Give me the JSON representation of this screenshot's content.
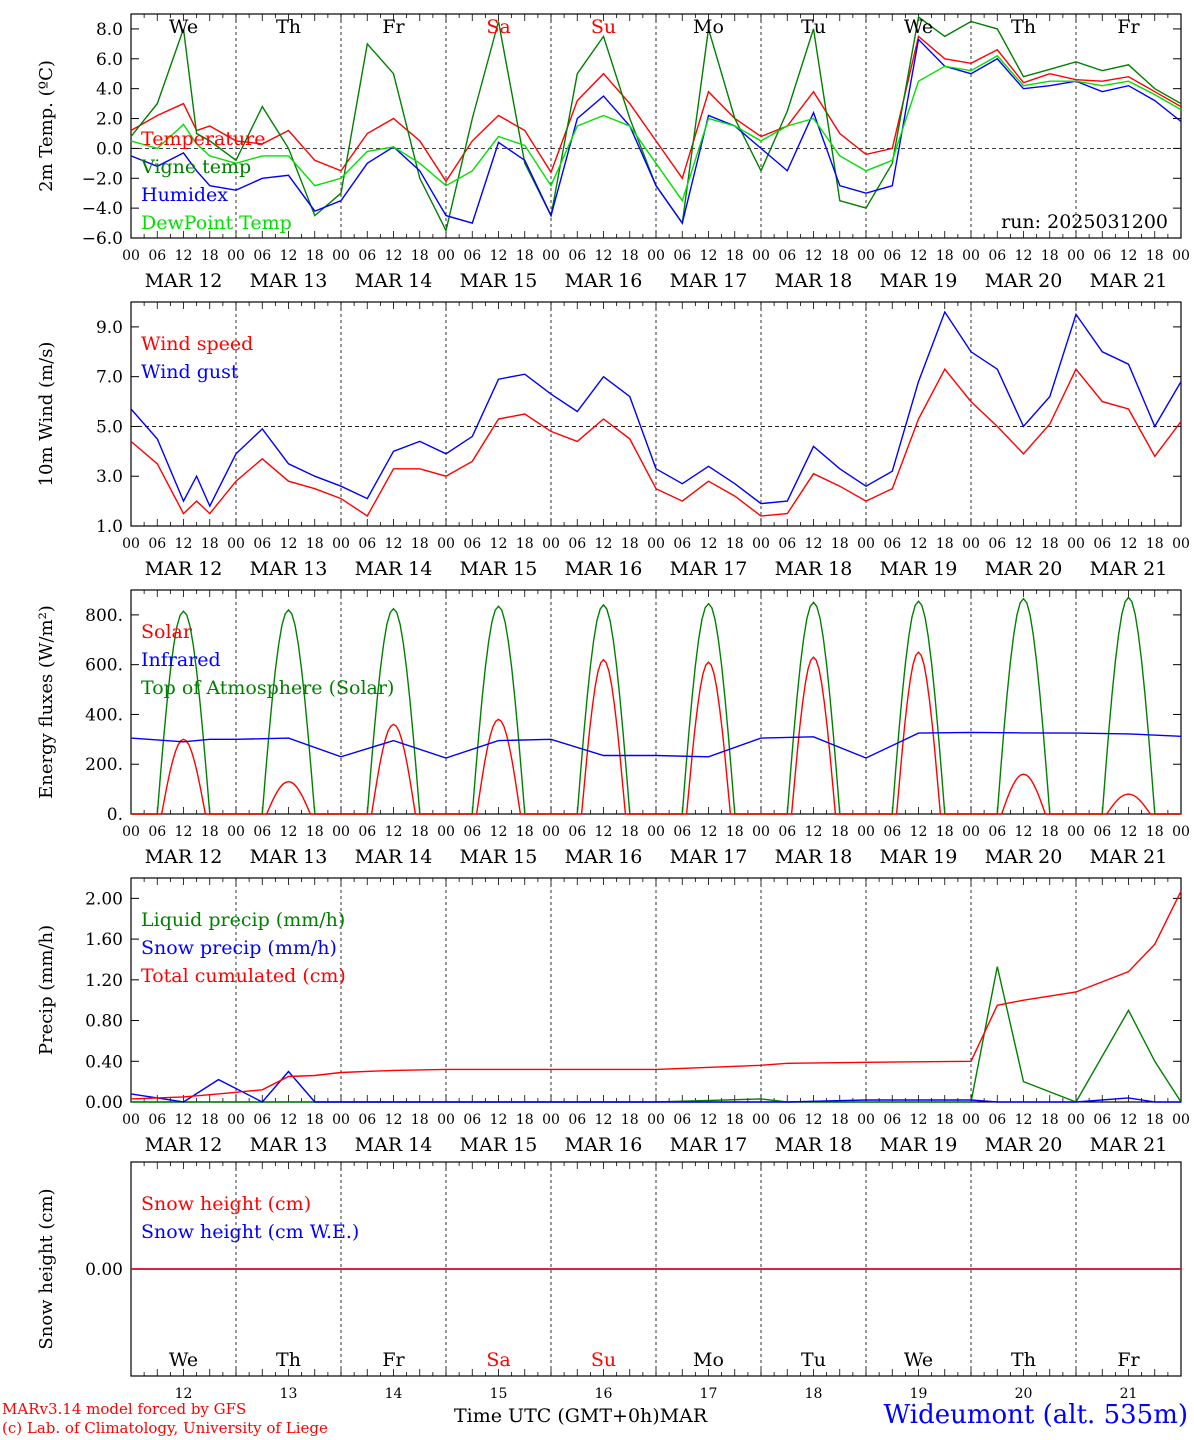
{
  "footer": {
    "model_line": "MARv3.14 model forced by GFS",
    "lab_line": "(c) Lab. of Climatology, University of Liege",
    "axis_title": "Time UTC (GMT+0h)",
    "month": "MAR",
    "station": "Wideumont (alt. 535m)"
  },
  "colors": {
    "red": "#ff0000",
    "blue": "#0000ff",
    "green": "#008000",
    "lightgreen": "#00e000"
  },
  "chart_data": [
    {
      "type": "line",
      "ylabel": "2m Temp. (ºC)",
      "ylim": [
        -6,
        9
      ],
      "yticks": [
        -6,
        -4,
        -2,
        0,
        2,
        4,
        6,
        8
      ],
      "ytick_labels": [
        "−6.0",
        "−4.0",
        "−2.0",
        "0.0",
        "2.0",
        "4.0",
        "6.0",
        "8.0"
      ],
      "ref_line": 0,
      "run_label": "run: 2025031200",
      "weekdays": [
        "We",
        "Th",
        "Fr",
        "Sa",
        "Su",
        "Mo",
        "Tu",
        "We",
        "Th",
        "Fr"
      ],
      "weekday_colors": [
        "#000000",
        "#000000",
        "#000000",
        "#ff0000",
        "#ff0000",
        "#000000",
        "#000000",
        "#000000",
        "#000000",
        "#000000"
      ],
      "x_hours": [
        0,
        6,
        12,
        15,
        18,
        24,
        30,
        36,
        42,
        48,
        54,
        60,
        66,
        72,
        78,
        84,
        90,
        96,
        102,
        108,
        114,
        120,
        126,
        132,
        138,
        144,
        150,
        156,
        162,
        168,
        174,
        180,
        186,
        192,
        198,
        204,
        210,
        216,
        222,
        228,
        234,
        240
      ],
      "series": [
        {
          "name": "Temperature",
          "color": "#ff0000",
          "values": [
            1.2,
            2.2,
            3.0,
            1.2,
            1.5,
            0.5,
            0.3,
            1.2,
            -0.8,
            -1.5,
            1.0,
            2.0,
            0.5,
            -2.2,
            0.5,
            2.2,
            1.2,
            -1.6,
            3.2,
            5.0,
            3.0,
            0.5,
            -2.0,
            3.8,
            2.0,
            0.8,
            1.5,
            3.8,
            1.0,
            -0.4,
            0.0,
            7.5,
            6.0,
            5.7,
            6.6,
            4.4,
            5.0,
            4.6,
            4.5,
            4.8,
            3.8,
            2.8
          ]
        },
        {
          "name": "Vigne temp",
          "color": "#008000",
          "values": [
            0.8,
            3.0,
            8.0,
            1.0,
            0.5,
            -0.8,
            2.8,
            0.0,
            -4.5,
            -3.0,
            7.0,
            5.0,
            -2.0,
            -5.5,
            2.0,
            8.5,
            -1.0,
            -4.5,
            5.0,
            7.5,
            2.0,
            -2.5,
            -5.0,
            8.0,
            2.0,
            -1.5,
            2.5,
            8.0,
            -3.5,
            -4.0,
            -1.0,
            8.8,
            7.5,
            8.5,
            8.0,
            4.8,
            5.3,
            5.8,
            5.2,
            5.6,
            4.0,
            3.0
          ]
        },
        {
          "name": "Humidex",
          "color": "#0000ff",
          "values": [
            -0.5,
            -1.2,
            -0.3,
            -1.5,
            -2.5,
            -2.8,
            -2.0,
            -1.8,
            -4.2,
            -3.5,
            -1.0,
            0.1,
            -1.5,
            -4.5,
            -5.0,
            0.4,
            -0.8,
            -4.5,
            2.0,
            3.5,
            1.5,
            -2.5,
            -5.0,
            2.2,
            1.5,
            0.0,
            -1.5,
            2.4,
            -2.5,
            -3.0,
            -2.5,
            7.3,
            5.5,
            5.0,
            6.0,
            4.0,
            4.2,
            4.5,
            3.8,
            4.2,
            3.2,
            1.8
          ]
        },
        {
          "name": "DewPoint Temp",
          "color": "#00e000",
          "values": [
            0.5,
            0.0,
            1.6,
            0.3,
            -0.5,
            -1.0,
            -0.5,
            -0.5,
            -2.5,
            -2.0,
            -0.2,
            0.1,
            -1.0,
            -2.5,
            -1.5,
            0.8,
            0.2,
            -2.5,
            1.5,
            2.2,
            1.5,
            -1.0,
            -3.5,
            2.0,
            1.5,
            0.5,
            1.5,
            2.0,
            -0.5,
            -1.5,
            -0.8,
            4.5,
            5.5,
            5.2,
            6.2,
            4.2,
            4.5,
            4.5,
            4.2,
            4.5,
            3.6,
            2.6
          ]
        }
      ]
    },
    {
      "type": "line",
      "ylabel": "10m Wind (m/s)",
      "ylim": [
        1,
        10
      ],
      "yticks": [
        1,
        3,
        5,
        7,
        9
      ],
      "ytick_labels": [
        "1.0",
        "3.0",
        "5.0",
        "7.0",
        "9.0"
      ],
      "ref_line": 5,
      "x_hours": [
        0,
        6,
        12,
        15,
        18,
        24,
        30,
        36,
        42,
        48,
        54,
        60,
        66,
        72,
        78,
        84,
        90,
        96,
        102,
        108,
        114,
        120,
        126,
        132,
        138,
        144,
        150,
        156,
        162,
        168,
        174,
        180,
        186,
        192,
        198,
        204,
        210,
        216,
        222,
        228,
        234,
        240
      ],
      "series": [
        {
          "name": "Wind speed",
          "color": "#ff0000",
          "values": [
            4.4,
            3.5,
            1.5,
            2.0,
            1.5,
            2.8,
            3.7,
            2.8,
            2.5,
            2.1,
            1.4,
            3.3,
            3.3,
            3.0,
            3.6,
            5.3,
            5.5,
            4.8,
            4.4,
            5.3,
            4.5,
            2.5,
            2.0,
            2.8,
            2.2,
            1.4,
            1.5,
            3.1,
            2.6,
            2.0,
            2.5,
            5.3,
            7.3,
            6.0,
            5.0,
            3.9,
            5.1,
            7.3,
            6.0,
            5.7,
            3.8,
            5.2
          ]
        },
        {
          "name": "Wind gust",
          "color": "#0000ff",
          "values": [
            5.7,
            4.5,
            2.0,
            3.0,
            1.8,
            3.9,
            4.9,
            3.5,
            3.0,
            2.6,
            2.1,
            4.0,
            4.4,
            3.9,
            4.6,
            6.9,
            7.1,
            6.3,
            5.6,
            7.0,
            6.2,
            3.3,
            2.7,
            3.4,
            2.7,
            1.9,
            2.0,
            4.2,
            3.3,
            2.6,
            3.2,
            6.8,
            9.6,
            8.0,
            7.3,
            5.0,
            6.2,
            9.5,
            8.0,
            7.5,
            5.0,
            6.8
          ]
        }
      ]
    },
    {
      "type": "line",
      "ylabel": "Energy fluxes (W/m²)",
      "ylim": [
        0,
        900
      ],
      "yticks": [
        0,
        200,
        400,
        600,
        800
      ],
      "ytick_labels": [
        "0.",
        "200.",
        "400.",
        "600.",
        "800."
      ],
      "toa_peaks": [
        815,
        820,
        825,
        835,
        840,
        845,
        850,
        855,
        865,
        870
      ],
      "series": [
        {
          "name": "Solar",
          "color": "#ff0000",
          "peaks": [
            300,
            130,
            360,
            380,
            620,
            610,
            630,
            650,
            160,
            80
          ]
        },
        {
          "name": "Infrared",
          "color": "#0000ff",
          "x_hours": [
            0,
            12,
            18,
            24,
            36,
            48,
            60,
            72,
            84,
            96,
            108,
            120,
            132,
            144,
            156,
            168,
            180,
            192,
            204,
            216,
            228,
            240
          ],
          "values": [
            305,
            290,
            300,
            300,
            305,
            230,
            295,
            225,
            295,
            300,
            235,
            235,
            230,
            305,
            310,
            225,
            325,
            328,
            326,
            325,
            322,
            312
          ]
        },
        {
          "name": "Top of Atmosphere (Solar)",
          "color": "#008000"
        }
      ]
    },
    {
      "type": "line",
      "ylabel": "Precip (mm/h)",
      "ylim": [
        0,
        2.2
      ],
      "yticks": [
        0,
        0.4,
        0.8,
        1.2,
        1.6,
        2.0
      ],
      "ytick_labels": [
        "0.00",
        "0.40",
        "0.80",
        "1.20",
        "1.60",
        "2.00"
      ],
      "x_hours": [
        0,
        12,
        20,
        30,
        36,
        42,
        48,
        60,
        72,
        96,
        120,
        144,
        150,
        168,
        192,
        198,
        204,
        216,
        228,
        234,
        240
      ],
      "series": [
        {
          "name": "Liquid precip (mm/h)",
          "color": "#008000",
          "values": [
            0.0,
            0.0,
            0.0,
            0.0,
            0.0,
            0.0,
            0.0,
            0.0,
            0.0,
            0.0,
            0.0,
            0.03,
            0.0,
            0.0,
            0.0,
            1.33,
            0.2,
            0.0,
            0.9,
            0.4,
            0.0
          ]
        },
        {
          "name": "Snow precip (mm/h)",
          "color": "#0000ff",
          "values": [
            0.08,
            0.0,
            0.22,
            0.0,
            0.3,
            0.0,
            0.0,
            0.0,
            0.0,
            0.0,
            0.0,
            0.0,
            0.0,
            0.02,
            0.02,
            0.0,
            0.0,
            0.0,
            0.04,
            0.0,
            0.0
          ]
        },
        {
          "name": "Total cumulated (cm)",
          "color": "#ff0000",
          "values": [
            0.03,
            0.05,
            0.08,
            0.12,
            0.25,
            0.26,
            0.29,
            0.31,
            0.32,
            0.32,
            0.32,
            0.36,
            0.38,
            0.39,
            0.4,
            0.95,
            1.0,
            1.08,
            1.28,
            1.55,
            2.07
          ]
        }
      ]
    },
    {
      "type": "line",
      "ylabel": "Snow height (cm)",
      "ylim": [
        -1,
        1
      ],
      "yticks": [
        0
      ],
      "ytick_labels": [
        "0.00"
      ],
      "series": [
        {
          "name": "Snow height (cm)",
          "color": "#ff0000",
          "values": [
            0,
            0
          ]
        },
        {
          "name": "Snow height (cm W.E.)",
          "color": "#0000ff",
          "values": [
            0,
            0
          ]
        }
      ],
      "weekdays": [
        "We",
        "Th",
        "Fr",
        "Sa",
        "Su",
        "Mo",
        "Tu",
        "We",
        "Th",
        "Fr"
      ],
      "weekday_colors": [
        "#000000",
        "#000000",
        "#000000",
        "#ff0000",
        "#ff0000",
        "#000000",
        "#000000",
        "#000000",
        "#000000",
        "#000000"
      ],
      "day_numbers": [
        "12",
        "13",
        "14",
        "15",
        "16",
        "17",
        "18",
        "19",
        "20",
        "21"
      ]
    }
  ],
  "x_axis": {
    "hour_labels": [
      "00",
      "06",
      "12",
      "18"
    ],
    "end_label": "00",
    "date_labels": [
      "MAR 12",
      "MAR 13",
      "MAR 14",
      "MAR 15",
      "MAR 16",
      "MAR 17",
      "MAR 18",
      "MAR 19",
      "MAR 20",
      "MAR 21"
    ]
  }
}
